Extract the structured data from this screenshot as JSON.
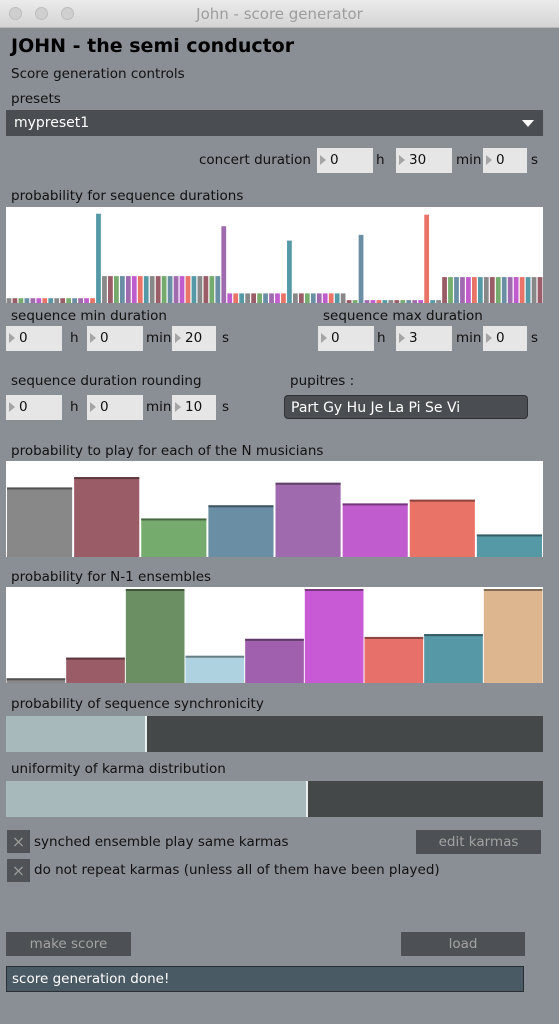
{
  "window": {
    "title": "John - score generator"
  },
  "app": {
    "title": "JOHN - the semi conductor",
    "subtitle": "Score generation controls"
  },
  "presets": {
    "label": "presets",
    "selected": "mypreset1"
  },
  "concert_duration": {
    "label": "concert duration",
    "h": "0",
    "min": "30",
    "s": "0"
  },
  "units": {
    "h": "h",
    "min": "min",
    "s": "s"
  },
  "seq_prob": {
    "label": "probability for sequence durations"
  },
  "seq_min": {
    "label": "sequence min duration",
    "h": "0",
    "min": "0",
    "s": "20"
  },
  "seq_max": {
    "label": "sequence max duration",
    "h": "0",
    "min": "3",
    "s": "0"
  },
  "rounding": {
    "label": "sequence duration rounding",
    "h": "0",
    "min": "0",
    "s": "10"
  },
  "pupitres": {
    "label": "pupitres :",
    "value": "Part Gy Hu Je La Pi Se Vi"
  },
  "musicians": {
    "label": "probability to play for each of the N musicians",
    "values": [
      0.74,
      0.85,
      0.41,
      0.55,
      0.79,
      0.57,
      0.61,
      0.24
    ],
    "colors": [
      "#888888",
      "#9a5c66",
      "#75ab6c",
      "#6a8ea4",
      "#a06aaf",
      "#c05ccd",
      "#ea7367",
      "#5699a6"
    ]
  },
  "ensembles": {
    "label": "probability for N-1 ensembles",
    "values": [
      0.05,
      0.27,
      1.0,
      0.29,
      0.47,
      1.0,
      0.49,
      0.52,
      1.0
    ],
    "colors": [
      "#888888",
      "#9a5c66",
      "#6b8e62",
      "#aed2df",
      "#a060ad",
      "#c95ad6",
      "#e7716a",
      "#5798a7",
      "#ddb58e"
    ]
  },
  "synchronicity": {
    "label": "probability of sequence synchronicity",
    "value": 0.26
  },
  "karma_uniformity": {
    "label": "uniformity of karma distribution",
    "value": 0.56
  },
  "options": {
    "synched": {
      "label": "synched ensemble play same karmas",
      "checked": "×"
    },
    "no_repeat": {
      "label": "do not repeat karmas (unless all of them have been played)",
      "checked": "×"
    }
  },
  "buttons": {
    "edit_karmas": "edit karmas",
    "make_score": "make score",
    "load": "load"
  },
  "status": {
    "text": "score generation done!"
  }
}
